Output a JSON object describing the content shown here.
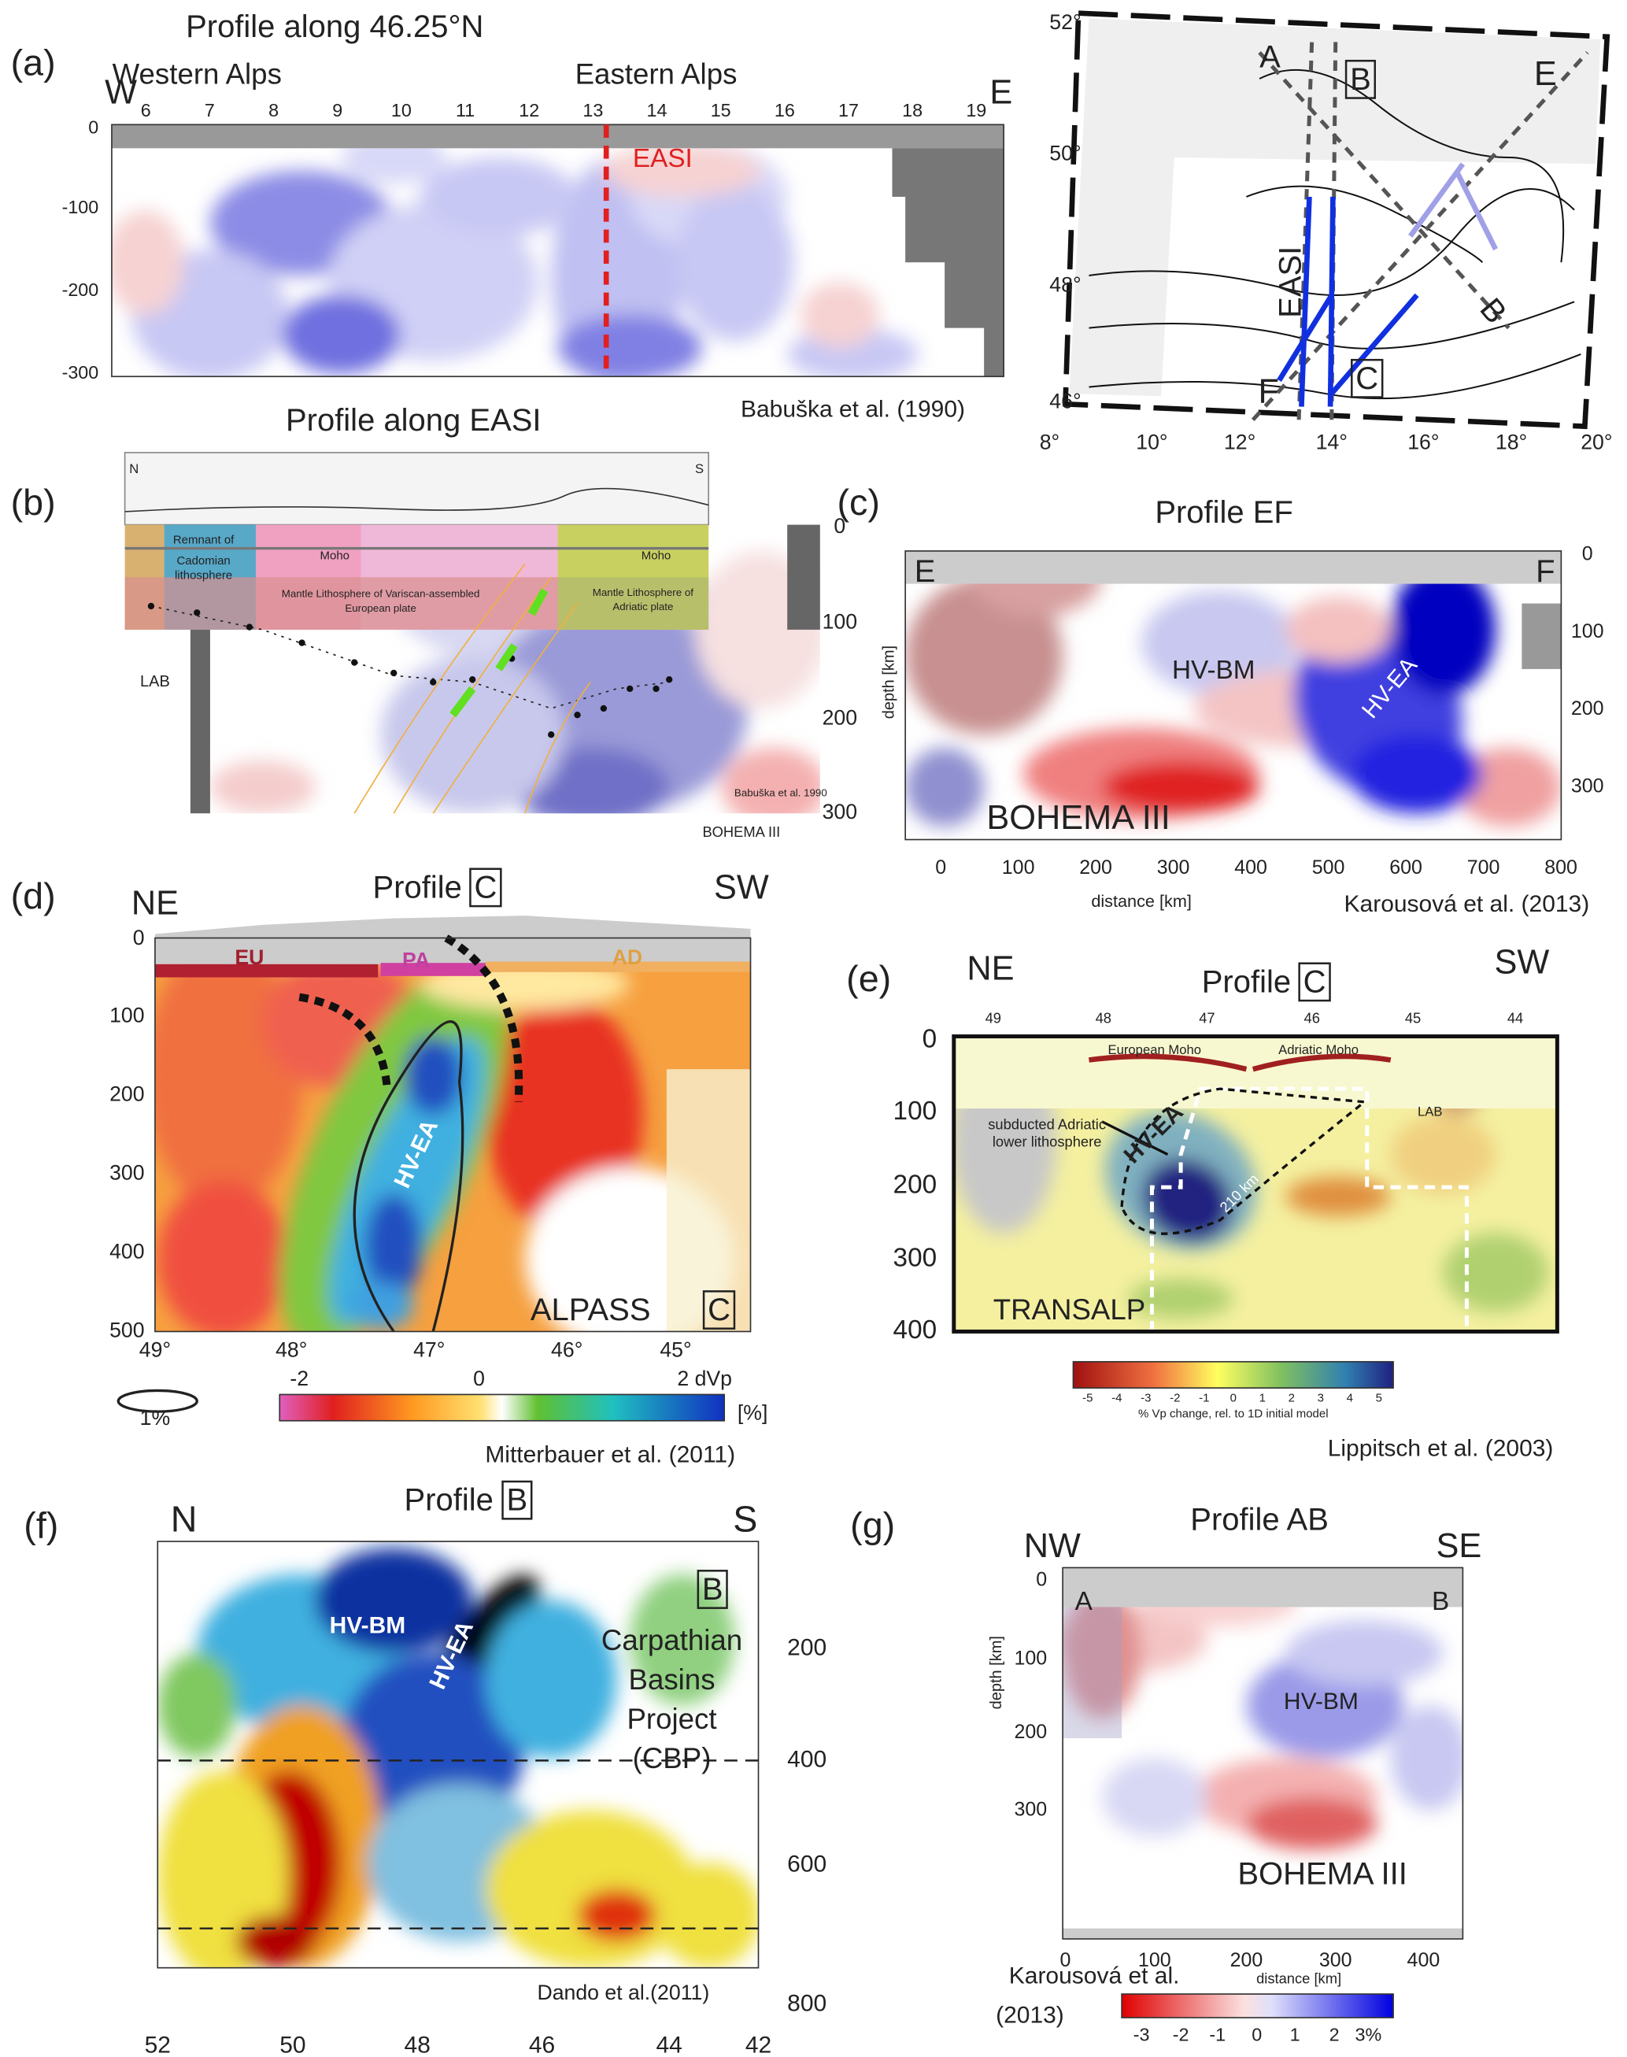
{
  "panel_a": {
    "label": "(a)",
    "title": "Profile along 46.25°N",
    "texts": [
      "Western Alps",
      "Eastern Alps",
      "W",
      "E",
      "EASI"
    ],
    "x_ticks": [
      6,
      7,
      8,
      9,
      10,
      11,
      12,
      13,
      14,
      15,
      16,
      17,
      18,
      19
    ],
    "y_ticks": [
      0,
      -100,
      -200,
      -300
    ],
    "credit": "Babuška et al.  (1990)"
  },
  "panel_map": {
    "lat_ticks": [
      "52°",
      "50°",
      "48°",
      "46°"
    ],
    "lon_ticks": [
      "8°",
      "10°",
      "12°",
      "14°",
      "16°",
      "18°",
      "20°"
    ],
    "texts": [
      "A",
      "B",
      "E",
      "EASI",
      "B",
      "F",
      "C"
    ]
  },
  "panel_b": {
    "label": "(b)",
    "title": "Profile along EASI",
    "right_ticks": [
      0,
      100,
      200,
      300
    ],
    "texts": [
      "LAB",
      "BOHEMA III",
      "Babuška et al. 1990",
      "N",
      "S",
      "Remnant of",
      "Cadomian",
      "lithosphere",
      "Moho",
      "Moho",
      "Mantle Lithosphere of Variscan-assembled",
      "European plate",
      "Mantle Lithosphere of",
      "Adriatic plate"
    ]
  },
  "panel_c": {
    "label": "(c)",
    "title": "Profile EF",
    "texts": [
      "E",
      "F",
      "depth [km]",
      "distance [km]",
      "HV-BM",
      "HV-EA",
      "BOHEMA III"
    ],
    "right_ticks": [
      0,
      100,
      200,
      300
    ],
    "x_ticks": [
      0,
      100,
      200,
      300,
      400,
      500,
      600,
      700,
      800
    ],
    "credit": "Karousová et al.  (2013)"
  },
  "panel_d": {
    "label": "(d)",
    "texts": [
      "NE",
      "Profile",
      "C",
      "SW",
      "EU",
      "PA",
      "AD",
      "HV-EA",
      "ALPASS",
      "C",
      "1%",
      "[%]"
    ],
    "y_ticks": [
      0,
      100,
      200,
      300,
      400,
      500
    ],
    "x_ticks": [
      "49°",
      "48°",
      "47°",
      "46°",
      "45°"
    ],
    "colorbar_ticks": [
      -2,
      0,
      "2 dVp"
    ],
    "credit": "Mitterbauer et al. (2011)"
  },
  "panel_e": {
    "label": "(e)",
    "texts": [
      "NE",
      "Profile",
      "C",
      "SW",
      "European Moho",
      "Adriatic Moho",
      "LAB",
      "subducted Adriatic",
      "lower lithosphere",
      "HV-EA",
      "210 km",
      "TRANSALP",
      "% Vp change, rel. to 1D initial model"
    ],
    "top_ticks": [
      49,
      48,
      47,
      46,
      45,
      44
    ],
    "y_ticks": [
      0,
      100,
      200,
      300,
      400
    ],
    "colorbar_ticks": [
      -5,
      -4,
      -3,
      -2,
      -1,
      0,
      1,
      2,
      3,
      4,
      5
    ],
    "credit": "Lippitsch et al. (2003)"
  },
  "panel_f": {
    "label": "(f)",
    "texts": [
      "N",
      "Profile",
      "B",
      "S",
      "B",
      "HV-BM",
      "HV-EA",
      "Carpathian",
      "Basins",
      "Project",
      "(CBP)"
    ],
    "y_ticks": [
      200,
      400,
      600,
      800
    ],
    "x_ticks": [
      52,
      50,
      48,
      46,
      44,
      42
    ],
    "credit": "Dando et al.(2011)"
  },
  "panel_g": {
    "label": "(g)",
    "title": "Profile AB",
    "texts": [
      "NW",
      "SE",
      "A",
      "B",
      "depth [km]",
      "distance [km]",
      "HV-BM",
      "BOHEMA III",
      "Karousová et al.",
      "(2013)"
    ],
    "y_ticks": [
      0,
      100,
      200,
      300
    ],
    "x_ticks": [
      0,
      100,
      200,
      300,
      400
    ],
    "colorbar_ticks": [
      -3,
      -2,
      -1,
      0,
      1,
      2,
      "3%"
    ]
  }
}
